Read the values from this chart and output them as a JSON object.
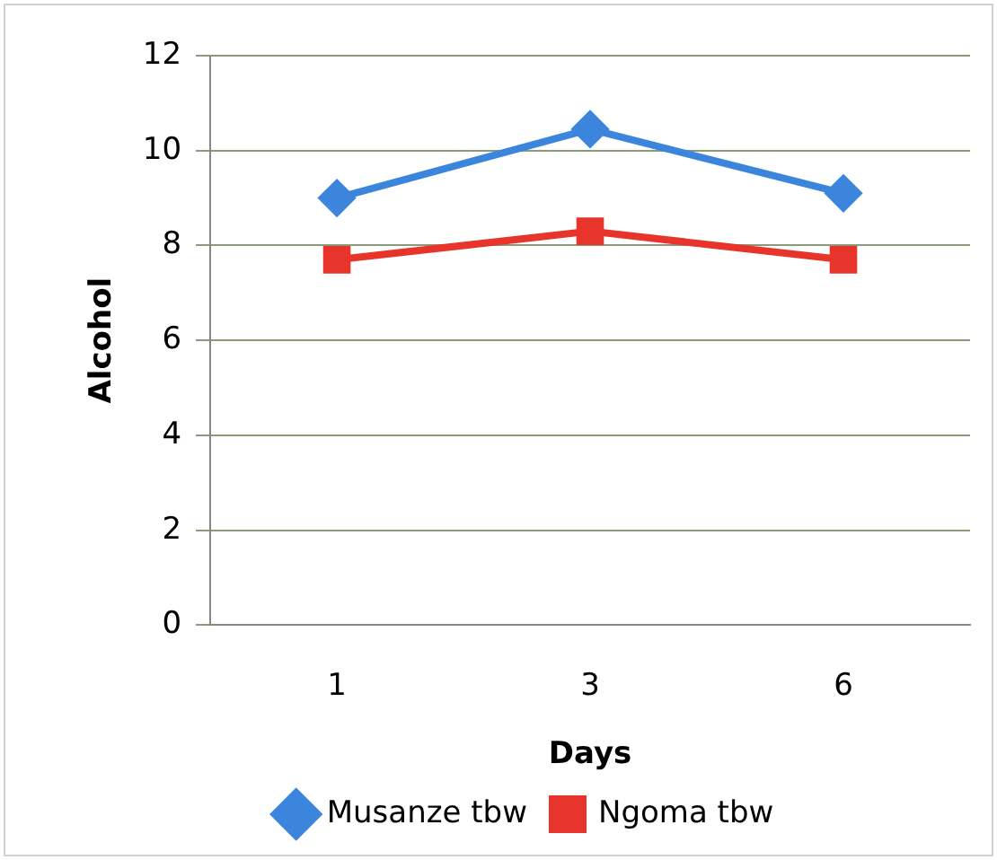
{
  "chart_data": {
    "type": "line",
    "xlabel": "Days",
    "ylabel": "Alcohol",
    "categories": [
      "1",
      "3",
      "6"
    ],
    "series": [
      {
        "name": "Musanze tbw",
        "color": "#3b86dc",
        "values": [
          9.0,
          10.45,
          9.1
        ],
        "marker": "diamond"
      },
      {
        "name": "Ngoma tbw",
        "color": "#e8352b",
        "values": [
          7.7,
          8.3,
          7.7
        ],
        "marker": "square"
      }
    ],
    "ylim": [
      0,
      12
    ],
    "yticks": [
      0,
      2,
      4,
      6,
      8,
      10,
      12
    ],
    "grid": "y",
    "legend": "bottom",
    "line_style": "solid"
  }
}
